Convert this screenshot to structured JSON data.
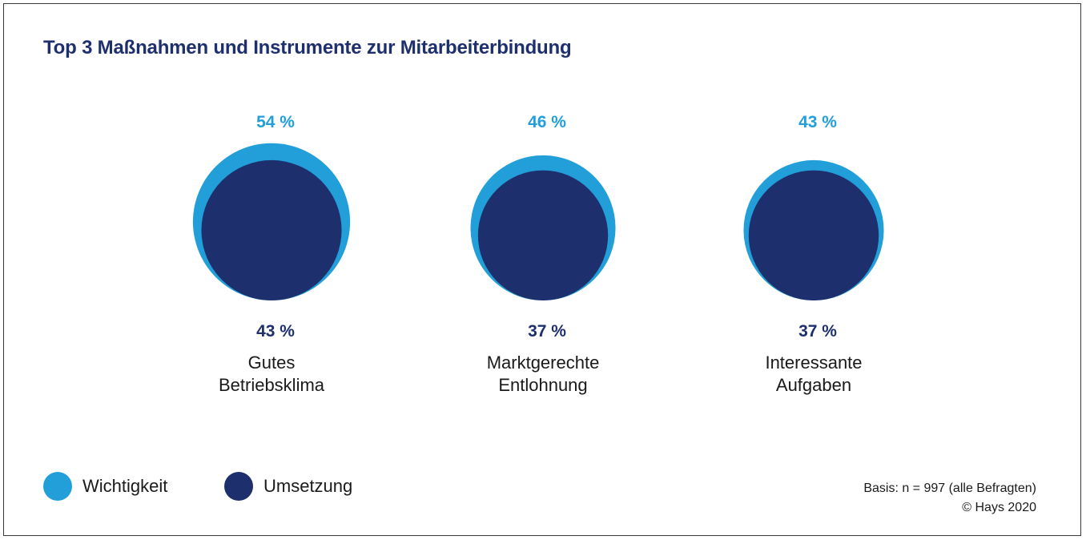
{
  "title": "Top 3 Maßnahmen und Instrumente zur Mitarbeiterbindung",
  "colors": {
    "wichtigkeit": "#229fd9",
    "umsetzung": "#1e2f6e",
    "text": "#1a1a1a"
  },
  "legend": [
    {
      "label": "Wichtigkeit",
      "color": "#229fd9"
    },
    {
      "label": "Umsetzung",
      "color": "#1e2f6e"
    }
  ],
  "source": [
    "Basis: n = 997 (alle Befragten)",
    "© Hays 2020"
  ],
  "chart_data": {
    "type": "bubble",
    "categories": [
      [
        "Gutes",
        "Betriebsklima"
      ],
      [
        "Marktgerechte",
        "Entlohnung"
      ],
      [
        "Interessante",
        "Aufgaben"
      ]
    ],
    "series": [
      {
        "name": "Wichtigkeit",
        "values": [
          54,
          46,
          43
        ],
        "labels": [
          "54 %",
          "46 %",
          "43 %"
        ],
        "color": "#229fd9"
      },
      {
        "name": "Umsetzung",
        "values": [
          43,
          37,
          37
        ],
        "labels": [
          "43 %",
          "37 %",
          "37 %"
        ],
        "color": "#1e2f6e"
      }
    ],
    "unit": "%"
  }
}
